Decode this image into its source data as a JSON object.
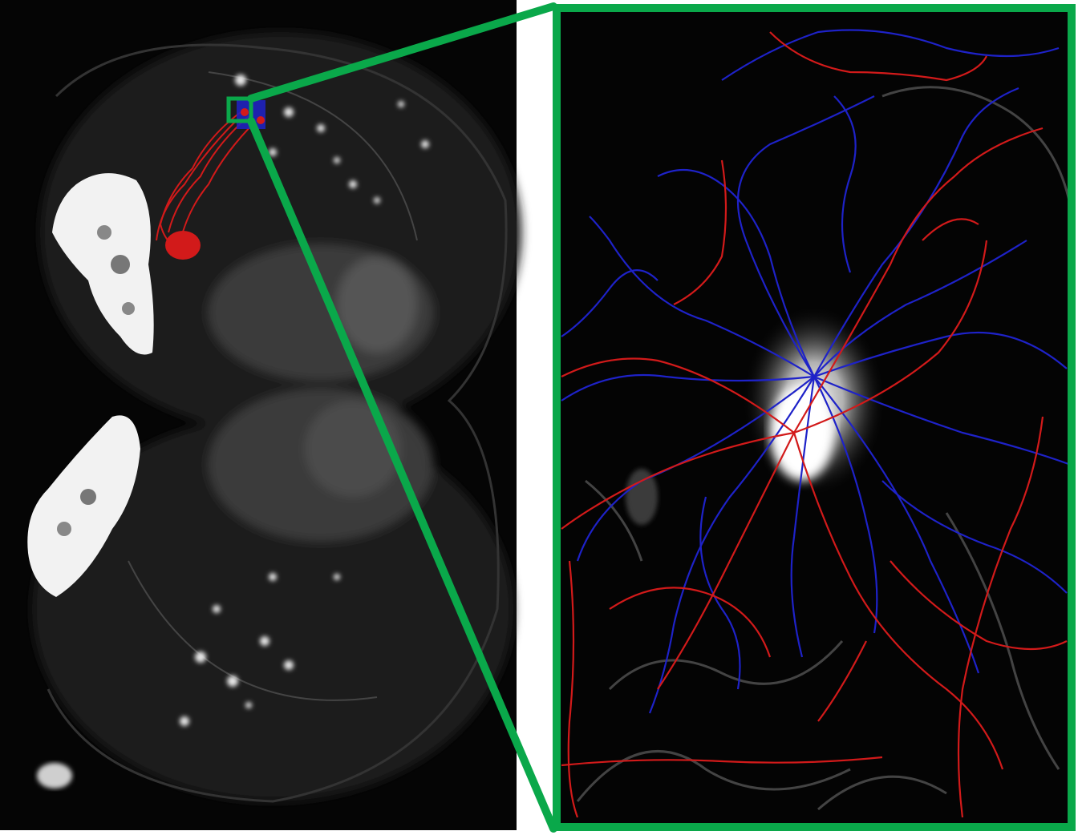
{
  "figure": {
    "left_panel": {
      "content": "brain-overview-microscopy",
      "inset_marker": "green-square"
    },
    "right_panel": {
      "content": "zoomed-neuron-reconstruction",
      "frame": "green-border"
    },
    "colors": {
      "background": "#ffffff",
      "tissue": "#050505",
      "highlight_frame": "#0aa84a",
      "trace_red": "#d21a1a",
      "trace_blue": "#1e22c8",
      "fluorescence": "#f2f2f2"
    }
  }
}
